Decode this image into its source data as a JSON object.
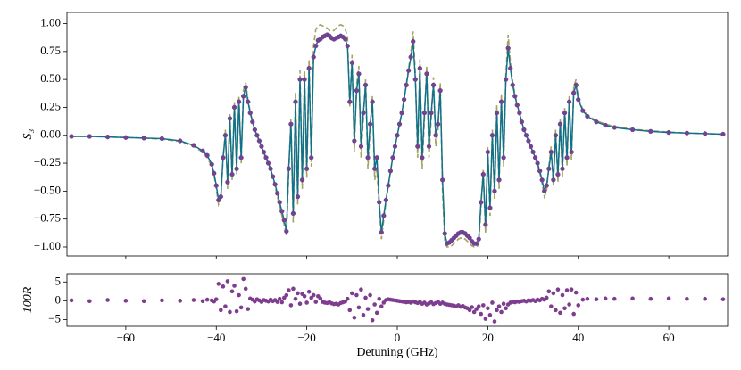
{
  "chart_data": [
    {
      "type": "line",
      "ylabel": "S₃",
      "x": [
        -72,
        -68,
        -64,
        -60,
        -56,
        -52,
        -48,
        -45,
        -43,
        -42,
        -41,
        -40.5,
        -40,
        -39.5,
        -39,
        -38.5,
        -38,
        -37.5,
        -37,
        -36.5,
        -36,
        -35.5,
        -35,
        -34.5,
        -34,
        -33.5,
        -33,
        -32.5,
        -32,
        -31.5,
        -31,
        -30.5,
        -30,
        -29.5,
        -29,
        -28.5,
        -28,
        -27.5,
        -27,
        -26.5,
        -26,
        -25.5,
        -25,
        -24.5,
        -24,
        -23.5,
        -23,
        -22.5,
        -22,
        -21.5,
        -21,
        -20.5,
        -20,
        -19.5,
        -19,
        -18.5,
        -18,
        -17.5,
        -17,
        -16.5,
        -16,
        -15.5,
        -15,
        -14.5,
        -14,
        -13.5,
        -13,
        -12.5,
        -12,
        -11.5,
        -11,
        -10.5,
        -10,
        -9.5,
        -9,
        -8.5,
        -8,
        -7.5,
        -7,
        -6.5,
        -6,
        -5.5,
        -5,
        -4.5,
        -4,
        -3.5,
        -3,
        -2.5,
        -2,
        -1.5,
        -1,
        -0.5,
        0,
        0.5,
        1,
        1.5,
        2,
        2.5,
        3,
        3.5,
        4,
        4.5,
        5,
        5.5,
        6,
        6.5,
        7,
        7.5,
        8,
        8.5,
        9,
        9.5,
        10,
        10.5,
        11,
        11.5,
        12,
        12.5,
        13,
        13.5,
        14,
        14.5,
        15,
        15.5,
        16,
        16.5,
        17,
        17.5,
        18,
        18.5,
        19,
        19.5,
        20,
        20.5,
        21,
        21.5,
        22,
        22.5,
        23,
        23.5,
        24,
        24.5,
        25,
        25.5,
        26,
        26.5,
        27,
        27.5,
        28,
        28.5,
        29,
        29.5,
        30,
        30.5,
        31,
        31.5,
        32,
        32.5,
        33,
        33.5,
        34,
        34.5,
        35,
        35.5,
        36,
        36.5,
        37,
        37.5,
        38,
        38.5,
        39,
        39.5,
        40,
        41,
        42,
        44,
        46,
        48,
        52,
        56,
        60,
        64,
        68,
        72
      ],
      "xlim": [
        -73,
        73
      ],
      "xticks": [
        -60,
        -40,
        -20,
        0,
        20,
        40,
        60
      ],
      "ylim": [
        -1.08,
        1.1
      ],
      "yticks": [
        {
          "value": -1,
          "label": "−1.00"
        },
        {
          "value": -0.75,
          "label": "−0.75"
        },
        {
          "value": -0.5,
          "label": "−0.50"
        },
        {
          "value": -0.25,
          "label": "−0.25"
        },
        {
          "value": 0,
          "label": "0.00"
        },
        {
          "value": 0.25,
          "label": "0.25"
        },
        {
          "value": 0.5,
          "label": "0.50"
        },
        {
          "value": 0.75,
          "label": "0.75"
        },
        {
          "value": 1,
          "label": "1.00"
        }
      ],
      "series": [
        {
          "color": "#a3a35f",
          "dashed": true,
          "values": [
            -0.01,
            -0.01,
            -0.015,
            -0.02,
            -0.025,
            -0.035,
            -0.055,
            -0.1,
            -0.15,
            -0.2,
            -0.28,
            -0.36,
            -0.48,
            -0.62,
            -0.57,
            -0.22,
            0.05,
            -0.48,
            0.2,
            -0.4,
            0.3,
            -0.35,
            0.35,
            -0.25,
            0.4,
            0.47,
            0.32,
            0.21,
            0.13,
            0.05,
            0,
            -0.05,
            -0.1,
            -0.16,
            -0.21,
            -0.26,
            -0.32,
            -0.39,
            -0.46,
            -0.55,
            -0.63,
            -0.72,
            -0.8,
            -0.9,
            -0.35,
            0.15,
            -0.78,
            0.38,
            -0.62,
            0.58,
            -0.48,
            0.58,
            -0.38,
            0.68,
            -0.28,
            0.8,
            0.95,
            0.98,
            0.99,
            0.98,
            0.97,
            0.96,
            0.94,
            0.93,
            0.94,
            0.96,
            0.98,
            0.99,
            0.98,
            0.95,
            0.88,
            0.25,
            0.72,
            -0.15,
            0.45,
            0.62,
            -0.2,
            0.15,
            0.5,
            -0.3,
            0.05,
            0.35,
            -0.4,
            -0.3,
            -0.65,
            -0.93,
            -0.76,
            -0.6,
            -0.46,
            -0.33,
            -0.2,
            -0.1,
            0,
            0.1,
            0.2,
            0.33,
            0.46,
            0.6,
            0.74,
            0.93,
            0.55,
            -0.2,
            0.68,
            -0.3,
            0.15,
            0.62,
            -0.2,
            0.15,
            0.52,
            -0.1,
            0.05,
            0.47,
            -0.5,
            -0.95,
            -1.0,
            -1.0,
            -0.99,
            -0.97,
            -0.95,
            -0.93,
            -0.92,
            -0.92,
            -0.93,
            -0.95,
            -0.97,
            -0.99,
            -1.0,
            -1.0,
            -0.98,
            -0.65,
            -0.3,
            -0.88,
            -0.1,
            -0.72,
            0.05,
            -0.58,
            0.27,
            -0.48,
            0.37,
            -0.28,
            0.55,
            0.9,
            0.65,
            0.48,
            0.37,
            0.28,
            0.2,
            0.12,
            0.05,
            0,
            -0.05,
            -0.1,
            -0.16,
            -0.21,
            -0.27,
            -0.34,
            -0.43,
            -0.55,
            -0.5,
            -0.28,
            -0.1,
            -0.45,
            0.05,
            -0.42,
            0.15,
            -0.37,
            0.25,
            -0.27,
            0.35,
            -0.22,
            0.43,
            0.5,
            0.34,
            0.23,
            0.18,
            0.13,
            0.1,
            0.08,
            0.055,
            0.04,
            0.03,
            0.02,
            0.015,
            0.01
          ]
        },
        {
          "color": "#11718a",
          "marker_color": "#7e3d8e",
          "values": [
            -0.01,
            -0.01,
            -0.015,
            -0.02,
            -0.025,
            -0.03,
            -0.05,
            -0.09,
            -0.14,
            -0.18,
            -0.26,
            -0.34,
            -0.45,
            -0.58,
            -0.55,
            -0.2,
            0.0,
            -0.42,
            0.15,
            -0.35,
            0.25,
            -0.3,
            0.3,
            -0.2,
            0.35,
            0.43,
            0.3,
            0.2,
            0.12,
            0.05,
            0.0,
            -0.05,
            -0.1,
            -0.15,
            -0.2,
            -0.25,
            -0.3,
            -0.37,
            -0.44,
            -0.52,
            -0.6,
            -0.68,
            -0.76,
            -0.86,
            -0.3,
            0.1,
            -0.7,
            0.3,
            -0.55,
            0.5,
            -0.4,
            0.5,
            -0.3,
            0.6,
            -0.2,
            0.7,
            0.8,
            0.85,
            0.86,
            0.88,
            0.89,
            0.9,
            0.89,
            0.87,
            0.86,
            0.87,
            0.88,
            0.89,
            0.88,
            0.86,
            0.8,
            0.3,
            0.65,
            -0.05,
            0.4,
            0.55,
            -0.1,
            0.2,
            0.45,
            -0.2,
            0.1,
            0.3,
            -0.3,
            -0.2,
            -0.6,
            -0.87,
            -0.72,
            -0.58,
            -0.45,
            -0.32,
            -0.2,
            -0.1,
            0,
            0.1,
            0.2,
            0.32,
            0.45,
            0.58,
            0.7,
            0.84,
            0.5,
            -0.1,
            0.6,
            -0.2,
            0.2,
            0.55,
            -0.1,
            0.2,
            0.45,
            0,
            0.1,
            0.4,
            -0.4,
            -0.88,
            -0.97,
            -0.96,
            -0.94,
            -0.92,
            -0.9,
            -0.88,
            -0.87,
            -0.87,
            -0.88,
            -0.9,
            -0.92,
            -0.95,
            -0.97,
            -0.97,
            -0.93,
            -0.6,
            -0.35,
            -0.8,
            -0.15,
            -0.65,
            0,
            -0.5,
            0.2,
            -0.4,
            0.3,
            -0.2,
            0.5,
            0.78,
            0.6,
            0.45,
            0.35,
            0.27,
            0.2,
            0.12,
            0.05,
            0,
            -0.05,
            -0.1,
            -0.15,
            -0.2,
            -0.25,
            -0.32,
            -0.4,
            -0.5,
            -0.45,
            -0.3,
            -0.15,
            -0.4,
            0,
            -0.35,
            0.1,
            -0.3,
            0.2,
            -0.2,
            0.3,
            -0.15,
            0.38,
            0.45,
            0.32,
            0.22,
            0.17,
            0.12,
            0.09,
            0.07,
            0.05,
            0.035,
            0.025,
            0.02,
            0.015,
            0.01
          ]
        }
      ]
    },
    {
      "type": "scatter",
      "xlabel": "Detuning (GHz)",
      "ylabel": "100R",
      "color": "#7e3d8e",
      "x": [
        -72,
        -68,
        -64,
        -60,
        -56,
        -52,
        -48,
        -45,
        -43,
        -42,
        -41,
        -40.5,
        -40,
        -39.5,
        -39,
        -38.5,
        -38,
        -37.5,
        -37,
        -36.5,
        -36,
        -35.5,
        -35,
        -34.5,
        -34,
        -33.5,
        -33,
        -32.5,
        -32,
        -31.5,
        -31,
        -30.5,
        -30,
        -29.5,
        -29,
        -28.5,
        -28,
        -27.5,
        -27,
        -26.5,
        -26,
        -25.5,
        -25,
        -24.5,
        -24,
        -23.5,
        -23,
        -22.5,
        -22,
        -21.5,
        -21,
        -20.5,
        -20,
        -19.5,
        -19,
        -18.5,
        -18,
        -17.5,
        -17,
        -16.5,
        -16,
        -15.5,
        -15,
        -14.5,
        -14,
        -13.5,
        -13,
        -12.5,
        -12,
        -11.5,
        -11,
        -10.5,
        -10,
        -9.5,
        -9,
        -8.5,
        -8,
        -7.5,
        -7,
        -6.5,
        -6,
        -5.5,
        -5,
        -4.5,
        -4,
        -3.5,
        -3,
        -2.5,
        -2,
        -1.5,
        -1,
        -0.5,
        0,
        0.5,
        1,
        1.5,
        2,
        2.5,
        3,
        3.5,
        4,
        4.5,
        5,
        5.5,
        6,
        6.5,
        7,
        7.5,
        8,
        8.5,
        9,
        9.5,
        10,
        10.5,
        11,
        11.5,
        12,
        12.5,
        13,
        13.5,
        14,
        14.5,
        15,
        15.5,
        16,
        16.5,
        17,
        17.5,
        18,
        18.5,
        19,
        19.5,
        20,
        20.5,
        21,
        21.5,
        22,
        22.5,
        23,
        23.5,
        24,
        24.5,
        25,
        25.5,
        26,
        26.5,
        27,
        27.5,
        28,
        28.5,
        29,
        29.5,
        30,
        30.5,
        31,
        31.5,
        32,
        32.5,
        33,
        33.5,
        34,
        34.5,
        35,
        35.5,
        36,
        36.5,
        37,
        37.5,
        38,
        38.5,
        39,
        39.5,
        40,
        41,
        42,
        44,
        46,
        48,
        52,
        56,
        60,
        64,
        68,
        72
      ],
      "values": [
        0.1,
        -0.1,
        0.2,
        0,
        -0.1,
        0.1,
        0,
        0.2,
        -0.1,
        0.3,
        0.1,
        -0.2,
        0.4,
        4.5,
        -2.5,
        3.8,
        -1.5,
        5.2,
        -3,
        2.5,
        4,
        -2.8,
        1.5,
        -1.8,
        5.8,
        3.2,
        -2.2,
        0.6,
        0.3,
        -0.2,
        0.4,
        0.1,
        -0.3,
        0.2,
        0,
        -0.2,
        0.3,
        -0.1,
        0.2,
        -0.3,
        0.5,
        -0.4,
        0.8,
        1.5,
        2.8,
        -1.2,
        3.2,
        0.5,
        2,
        -0.8,
        1.8,
        1.2,
        -0.5,
        2.4,
        0.8,
        1.5,
        -0.3,
        1.2,
        0.6,
        -0.3,
        -0.5,
        -0.6,
        -0.4,
        -0.7,
        -0.9,
        -0.8,
        -1,
        -0.6,
        -0.4,
        -0.2,
        0.5,
        -2.5,
        2,
        -4.5,
        1.5,
        -1.8,
        3,
        -3.8,
        0.8,
        -2.2,
        1.5,
        -5.2,
        -1,
        -3.2,
        0.5,
        -1.5,
        -0.5,
        0.2,
        0.4,
        0.3,
        0.2,
        0.1,
        0,
        -0.1,
        -0.2,
        -0.3,
        -0.4,
        -0.3,
        -0.5,
        -0.2,
        -0.4,
        -0.6,
        -0.3,
        -0.8,
        -0.5,
        -1,
        -0.7,
        -0.4,
        -0.9,
        -0.6,
        -0.3,
        -0.8,
        -0.5,
        -0.8,
        -1,
        -1.1,
        -1.2,
        -1.3,
        -1.5,
        -1.2,
        -1.6,
        -1.4,
        -1.8,
        -2,
        -2.5,
        -1.7,
        -3,
        -2.2,
        -1.5,
        -3.5,
        -1.2,
        -4.8,
        -2,
        -3.8,
        -0.5,
        -5.5,
        -2.5,
        -1.5,
        -3,
        -0.8,
        -2,
        -1,
        -0.5,
        -0.3,
        -0.4,
        -0.2,
        -0.3,
        -0.1,
        0,
        -0.2,
        0.1,
        0,
        0.2,
        -0.1,
        0.3,
        0.1,
        0.5,
        0.3,
        0.8,
        2.5,
        -1.5,
        2,
        -2.5,
        3,
        -3.2,
        1.5,
        -2,
        2.8,
        -1,
        3,
        -3.5,
        2.2,
        -1.2,
        0.3,
        0.5,
        0.4,
        0.6,
        0.5,
        0.6,
        0.5,
        0.6,
        0.5,
        0.5,
        0.4
      ],
      "xlim": [
        -73,
        73
      ],
      "xticks": [
        {
          "value": -60,
          "label": "−60"
        },
        {
          "value": -40,
          "label": "−40"
        },
        {
          "value": -20,
          "label": "−20"
        },
        0,
        20,
        40,
        60
      ],
      "ylim": [
        -6.8,
        7.2
      ],
      "yticks": [
        {
          "value": -5,
          "label": "−5"
        },
        0,
        5
      ]
    }
  ]
}
